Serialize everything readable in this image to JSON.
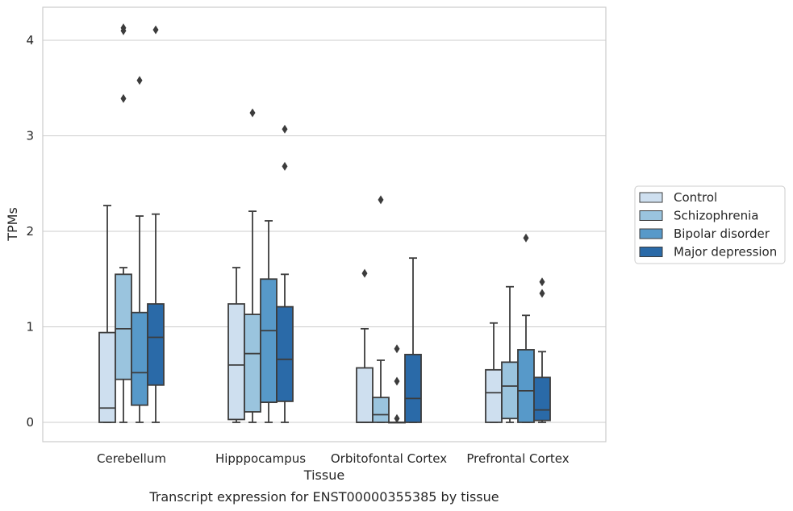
{
  "chart_data": {
    "type": "box",
    "title": "Transcript expression for ENST00000355385 by tissue",
    "xlabel": "Tissue",
    "ylabel": "TPMs",
    "ylim": [
      -0.2,
      4.35
    ],
    "yticks": [
      0,
      1,
      2,
      3,
      4
    ],
    "grid": "horizontal",
    "legend_position": "right",
    "categories": [
      "Cerebellum",
      "Hipppocampus",
      "Orbitofontal Cortex",
      "Prefrontal Cortex"
    ],
    "series": [
      {
        "name": "Control",
        "color": "#cedfef",
        "boxes": [
          {
            "whislo": 0.0,
            "q1": 0.0,
            "med": 0.15,
            "q3": 0.94,
            "whishi": 2.27,
            "fliers": []
          },
          {
            "whislo": 0.0,
            "q1": 0.03,
            "med": 0.6,
            "q3": 1.24,
            "whishi": 1.62,
            "fliers": []
          },
          {
            "whislo": 0.0,
            "q1": 0.0,
            "med": 0.0,
            "q3": 0.57,
            "whishi": 0.98,
            "fliers": [
              1.56
            ]
          },
          {
            "whislo": 0.0,
            "q1": 0.0,
            "med": 0.31,
            "q3": 0.55,
            "whishi": 1.04,
            "fliers": []
          }
        ]
      },
      {
        "name": "Schizophrenia",
        "color": "#9ac4de",
        "boxes": [
          {
            "whislo": 0.0,
            "q1": 0.45,
            "med": 0.98,
            "q3": 1.55,
            "whishi": 1.62,
            "fliers": [
              3.39,
              4.1,
              4.13
            ]
          },
          {
            "whislo": 0.0,
            "q1": 0.11,
            "med": 0.72,
            "q3": 1.13,
            "whishi": 2.21,
            "fliers": [
              3.24
            ]
          },
          {
            "whislo": 0.0,
            "q1": 0.0,
            "med": 0.08,
            "q3": 0.26,
            "whishi": 0.65,
            "fliers": [
              2.33
            ]
          },
          {
            "whislo": 0.0,
            "q1": 0.04,
            "med": 0.38,
            "q3": 0.63,
            "whishi": 1.42,
            "fliers": []
          }
        ]
      },
      {
        "name": "Bipolar disorder",
        "color": "#5799c9",
        "boxes": [
          {
            "whislo": 0.0,
            "q1": 0.18,
            "med": 0.52,
            "q3": 1.15,
            "whishi": 2.16,
            "fliers": [
              3.58
            ]
          },
          {
            "whislo": 0.0,
            "q1": 0.21,
            "med": 0.96,
            "q3": 1.5,
            "whishi": 2.11,
            "fliers": []
          },
          {
            "whislo": 0.0,
            "q1": 0.0,
            "med": 0.0,
            "q3": 0.0,
            "whishi": 0.0,
            "fliers": [
              0.04,
              0.43,
              0.77
            ]
          },
          {
            "whislo": 0.0,
            "q1": 0.0,
            "med": 0.33,
            "q3": 0.76,
            "whishi": 1.12,
            "fliers": [
              1.93
            ]
          }
        ]
      },
      {
        "name": "Major depression",
        "color": "#2a6aa8",
        "boxes": [
          {
            "whislo": 0.0,
            "q1": 0.39,
            "med": 0.89,
            "q3": 1.24,
            "whishi": 2.18,
            "fliers": [
              4.11
            ]
          },
          {
            "whislo": 0.0,
            "q1": 0.22,
            "med": 0.66,
            "q3": 1.21,
            "whishi": 1.55,
            "fliers": [
              2.68,
              3.07
            ]
          },
          {
            "whislo": 0.0,
            "q1": 0.0,
            "med": 0.25,
            "q3": 0.71,
            "whishi": 1.72,
            "fliers": []
          },
          {
            "whislo": 0.0,
            "q1": 0.02,
            "med": 0.13,
            "q3": 0.47,
            "whishi": 0.74,
            "fliers": [
              1.35,
              1.47
            ]
          }
        ]
      }
    ]
  }
}
